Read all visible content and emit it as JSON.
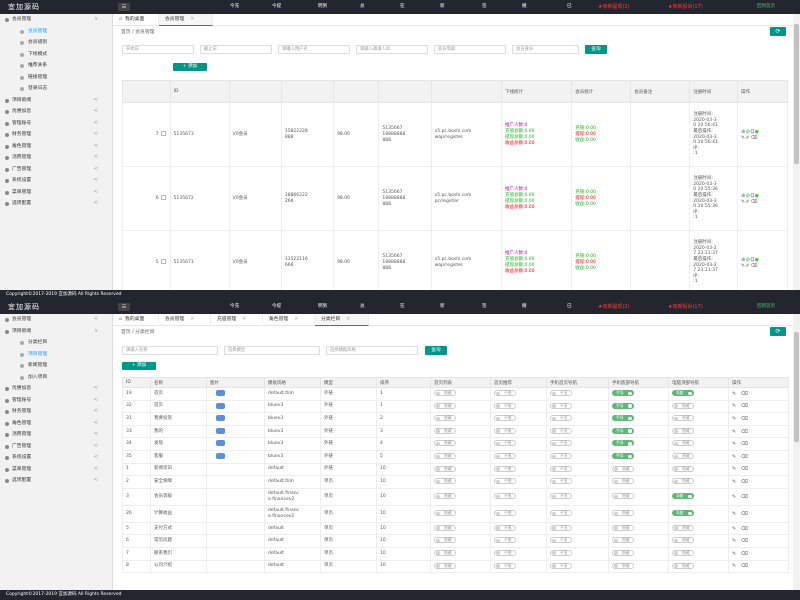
{
  "app": {
    "title": "宜加源码",
    "menu_icon": "menu-icon"
  },
  "topbar": {
    "stats": [
      "今充(0.00)",
      "今提(0.00)",
      "明到(0.00)",
      "总到(7)",
      "在线(1)",
      "新增(0)",
      "签到(0)",
      "撤减余额",
      "已到"
    ],
    "alert_red": "★有新提现(2)",
    "alert_red2": "★有新提现(2)",
    "alert_purple": "★有新投诉(17)",
    "alert_green": "回到首页",
    "colors": {
      "bar": "#23262e",
      "accent": "#009688",
      "red": "#ff3b3b"
    }
  },
  "footer": "Copyright©2017-2019 宜加源码 All Rights Reserved",
  "panel1": {
    "sidebar": [
      {
        "label": "会员管理",
        "type": "parent",
        "open": true,
        "chev": "∨"
      },
      {
        "label": "会员管理",
        "type": "sub",
        "active": true
      },
      {
        "label": "会员级别",
        "type": "sub"
      },
      {
        "label": "下线模式",
        "type": "sub"
      },
      {
        "label": "推荐关系",
        "type": "sub"
      },
      {
        "label": "链接管理",
        "type": "sub"
      },
      {
        "label": "登录日志",
        "type": "sub"
      },
      {
        "label": "项目新闻",
        "type": "parent",
        "chev": "<"
      },
      {
        "label": "优惠加息",
        "type": "parent",
        "chev": "<"
      },
      {
        "label": "管理账号",
        "type": "parent",
        "chev": "<"
      },
      {
        "label": "财务管理",
        "type": "parent",
        "chev": "<"
      },
      {
        "label": "角色管理",
        "type": "parent",
        "chev": "<"
      },
      {
        "label": "消费管理",
        "type": "parent",
        "chev": "<"
      },
      {
        "label": "广告管理",
        "type": "parent",
        "chev": "<"
      },
      {
        "label": "系统设置",
        "type": "parent",
        "chev": "<"
      },
      {
        "label": "菜单管理",
        "type": "parent",
        "chev": "<"
      },
      {
        "label": "选项配置",
        "type": "parent",
        "chev": "<"
      }
    ],
    "tabs": [
      {
        "label": "我的桌面",
        "icon": "home-icon"
      },
      {
        "label": "会员管理",
        "active": true,
        "close": "×"
      }
    ],
    "breadcrumb": "首页  /  会员管理",
    "refresh": "⟳",
    "filters": [
      "开始日",
      "截止日",
      "请输入用户名",
      "请输入邀请人ID",
      "会员等级",
      "会员身份"
    ],
    "search_label": "查询",
    "add_label": "+  添加",
    "table": {
      "headers": [
        "",
        "ID",
        "",
        "",
        "",
        "",
        "",
        "下线统计",
        "会员统计",
        "会员备注",
        "注册时间",
        "操作"
      ],
      "rows": [
        {
          "idx": "7",
          "id": "5135673",
          "level": "V0会员",
          "phone": "15822228\n888",
          "money": "98.00",
          "inviter": "5135667\n18888888\n888",
          "site": "v5.pc.boshi.com\nwap/register",
          "dl": [
            "推广人数:0",
            "充值总额:0.00",
            "提现总额:0.00",
            "收益总额:0.00"
          ],
          "mem": [
            "充值:0.00",
            "提现:0.00",
            "收益:0.00"
          ],
          "reg": "注册时间:\n2020-03-3\n0 10:56:41\n最后操作:\n2020-03-3\n0 10:56:41\nIP:\n:1"
        },
        {
          "idx": "6",
          "id": "5135672",
          "level": "V0会员",
          "phone": "18866222\n266",
          "money": "98.00",
          "inviter": "5135667\n18888888\n888",
          "site": "v5.pc.boshi.com\npc/register",
          "dl": [
            "推广人数:0",
            "充值总额:0.00",
            "提现总额:0.00",
            "收益总额:0.00"
          ],
          "mem": [
            "充值:0.00",
            "提现:0.00",
            "收益:0.00"
          ],
          "reg": "注册时间:\n2020-03-3\n0 10:55:36\n最后操作:\n2020-03-3\n0 10:55:36\nIP:\n:1"
        },
        {
          "idx": "5",
          "id": "5135671",
          "level": "V0会员",
          "phone": "13522116\n666",
          "money": "98.00",
          "inviter": "5135667\n18888888\n888",
          "site": "v5.pc.boshi.com\nwap/register",
          "dl": [
            "推广人数:0",
            "充值总额:0.00",
            "提现总额:0.00",
            "收益总额:0.00"
          ],
          "mem": [
            "充值:0.00",
            "提现:0.00",
            "收益:0.00"
          ],
          "reg": "注册时间:\n2020-03-2\n7 23:11:37\n最后操作:\n2020-03-2\n7 23:11:37\nIP:\n:1"
        }
      ]
    }
  },
  "panel2": {
    "sidebar": [
      {
        "label": "会员管理",
        "type": "parent",
        "chev": "<"
      },
      {
        "label": "项目新闻",
        "type": "parent",
        "open": true,
        "chev": "∨"
      },
      {
        "label": "分类栏目",
        "type": "sub"
      },
      {
        "label": "项目管理",
        "type": "sub",
        "active": true
      },
      {
        "label": "新闻管理",
        "type": "sub"
      },
      {
        "label": "加入项目",
        "type": "sub"
      },
      {
        "label": "优惠加息",
        "type": "parent",
        "chev": "<"
      },
      {
        "label": "管理账号",
        "type": "parent",
        "chev": "<"
      },
      {
        "label": "财务管理",
        "type": "parent",
        "chev": "<"
      },
      {
        "label": "角色管理",
        "type": "parent",
        "chev": "<"
      },
      {
        "label": "消费管理",
        "type": "parent",
        "chev": "<"
      },
      {
        "label": "广告管理",
        "type": "parent",
        "chev": "<"
      },
      {
        "label": "系统设置",
        "type": "parent",
        "chev": "<"
      },
      {
        "label": "菜单管理",
        "type": "parent",
        "chev": "<"
      },
      {
        "label": "选项配置",
        "type": "parent",
        "chev": "<"
      }
    ],
    "tabs": [
      {
        "label": "我的桌面",
        "icon": "home-icon"
      },
      {
        "label": "会员管理",
        "close": "×"
      },
      {
        "label": "充值管理",
        "close": "×"
      },
      {
        "label": "角色管理",
        "close": "×"
      },
      {
        "label": "分类栏目",
        "active": true,
        "close": "×"
      }
    ],
    "breadcrumb": "首页  /  分类栏目",
    "refresh": "⟳",
    "filters": [
      "请输入名称",
      "选择模型",
      "选择模板风格"
    ],
    "search_label": "查询",
    "add_label": "+  添加",
    "table": {
      "headers": [
        "ID",
        "名称",
        "图片",
        "模板风格",
        "模型",
        "排序",
        "首页列表",
        "首页推荐",
        "手机首页导航",
        "手机底部导航",
        "电脑顶部导航",
        "操作"
      ],
      "rows": [
        {
          "id": "19",
          "name": "首页",
          "img": true,
          "tpl": "default.tlim",
          "model": "外链",
          "sort": "1",
          "t": [
            0,
            0,
            0,
            1,
            1
          ]
        },
        {
          "id": "32",
          "name": "首页",
          "img": true,
          "tpl": "bluev3",
          "model": "外链",
          "sort": "1",
          "t": [
            0,
            0,
            0,
            1,
            0
          ]
        },
        {
          "id": "31",
          "name": "我要投资",
          "img": true,
          "tpl": "bluev3",
          "model": "外链",
          "sort": "2",
          "t": [
            0,
            0,
            0,
            1,
            0
          ]
        },
        {
          "id": "33",
          "name": "我的",
          "img": true,
          "tpl": "bluev3",
          "model": "外链",
          "sort": "3",
          "t": [
            0,
            0,
            0,
            1,
            0
          ]
        },
        {
          "id": "34",
          "name": "发现",
          "img": true,
          "tpl": "bluev3",
          "model": "外链",
          "sort": "4",
          "t": [
            0,
            0,
            0,
            1,
            0
          ]
        },
        {
          "id": "35",
          "name": "客服",
          "img": true,
          "tpl": "bluev3",
          "model": "外链",
          "sort": "5",
          "t": [
            0,
            0,
            0,
            1,
            0
          ]
        },
        {
          "id": "1",
          "name": "新闻资讯",
          "img": false,
          "tpl": "default",
          "model": "外链",
          "sort": "10",
          "t": [
            0,
            0,
            0,
            0,
            0
          ]
        },
        {
          "id": "2",
          "name": "安全保障",
          "img": false,
          "tpl": "default.tlim",
          "model": "单页",
          "sort": "10",
          "t": [
            0,
            0,
            0,
            0,
            0
          ]
        },
        {
          "id": "3",
          "name": "会员等级",
          "img": false,
          "tpl": "default.financ\ne.financev2",
          "model": "单页",
          "sort": "10",
          "t": [
            0,
            0,
            0,
            0,
            1
          ]
        },
        {
          "id": "26",
          "name": "计算收益",
          "img": false,
          "tpl": "default.financ\ne.financev2",
          "model": "单页",
          "sort": "10",
          "t": [
            0,
            0,
            0,
            0,
            1
          ]
        },
        {
          "id": "5",
          "name": "支付方式",
          "img": false,
          "tpl": "default",
          "model": "单页",
          "sort": "10",
          "t": [
            0,
            0,
            0,
            0,
            0
          ]
        },
        {
          "id": "6",
          "name": "常见问题",
          "img": false,
          "tpl": "default",
          "model": "单页",
          "sort": "10",
          "t": [
            0,
            0,
            0,
            0,
            0
          ]
        },
        {
          "id": "7",
          "name": "联系我们",
          "img": false,
          "tpl": "default",
          "model": "单页",
          "sort": "10",
          "t": [
            0,
            0,
            0,
            0,
            0
          ]
        },
        {
          "id": "8",
          "name": "公司介绍",
          "img": false,
          "tpl": "default",
          "model": "单页",
          "sort": "10",
          "t": [
            0,
            0,
            0,
            0,
            0
          ]
        }
      ],
      "toggle_off": [
        "隐藏",
        "不推",
        "不显",
        "隐藏",
        "隐藏"
      ],
      "toggle_on": [
        "显示",
        "推荐",
        "显示",
        "手导",
        "导航"
      ]
    }
  }
}
